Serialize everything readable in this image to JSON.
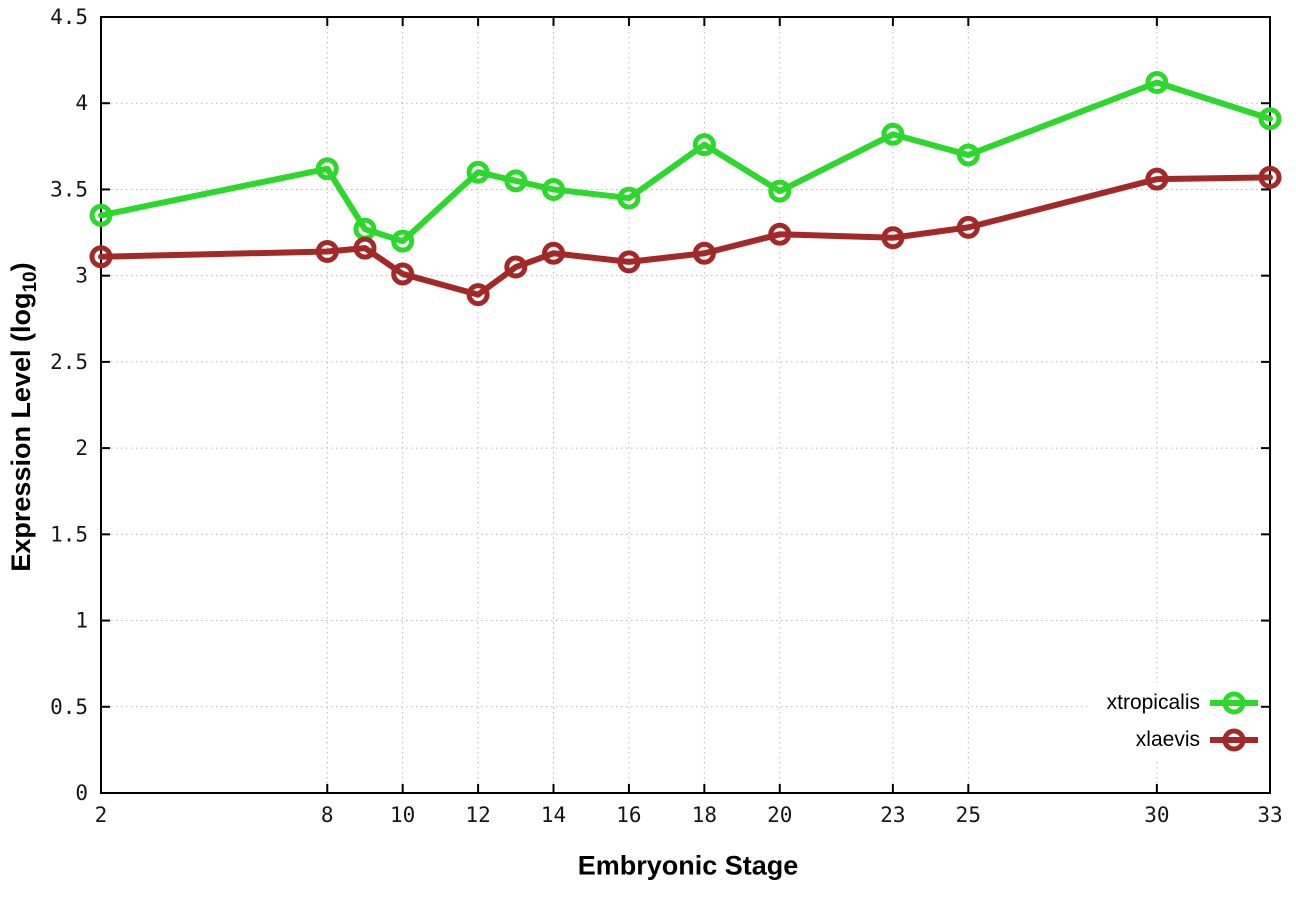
{
  "window": {
    "background_color": "#ffffff"
  },
  "chart_data": {
    "type": "line",
    "title": "",
    "xlabel": "Embryonic Stage",
    "ylabel": "Expression Level (log10)",
    "ylabel_parts": {
      "main": "Expression Level (log",
      "sub": "10",
      "end": ")"
    },
    "x": [
      2,
      8,
      9,
      10,
      12,
      13,
      14,
      16,
      18,
      20,
      23,
      25,
      30,
      33
    ],
    "series": [
      {
        "name": "xtropicalis",
        "color": "#2bd82b",
        "values": [
          3.35,
          3.62,
          3.27,
          3.2,
          3.6,
          3.55,
          3.5,
          3.45,
          3.76,
          3.49,
          3.82,
          3.7,
          4.12,
          3.91
        ]
      },
      {
        "name": "xlaevis",
        "color": "#a32929",
        "values": [
          3.11,
          3.14,
          3.16,
          3.01,
          2.89,
          3.05,
          3.13,
          3.08,
          3.13,
          3.24,
          3.22,
          3.28,
          3.56,
          3.57
        ]
      }
    ],
    "xlim": [
      2,
      33
    ],
    "ylim": [
      0,
      4.5
    ],
    "x_ticks": [
      2,
      8,
      10,
      12,
      14,
      16,
      18,
      20,
      23,
      25,
      30,
      33
    ],
    "x_tick_labels": [
      "2",
      "8",
      "10",
      "12",
      "14",
      "16",
      "18",
      "20",
      "23",
      "25",
      "30",
      "33"
    ],
    "y_ticks": [
      0,
      0.5,
      1,
      1.5,
      2,
      2.5,
      3,
      3.5,
      4,
      4.5
    ],
    "y_tick_labels": [
      "0",
      "0.5",
      "1",
      "1.5",
      "2",
      "2.5",
      "3",
      "3.5",
      "4",
      "4.5"
    ],
    "grid": true,
    "grid_style": "dotted",
    "grid_color": "#b8b8b8",
    "axis_color": "#000000",
    "tick_label_color": "#161616",
    "marker": "open-circle",
    "legend_position": "bottom-right-inside"
  }
}
